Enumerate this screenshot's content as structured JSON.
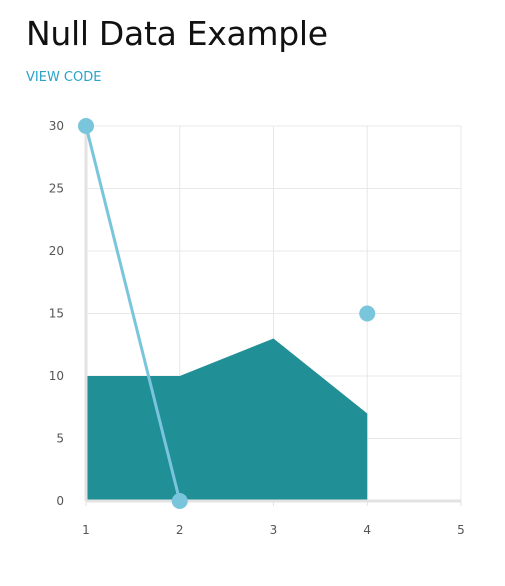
{
  "header": {
    "title": "Null Data Example",
    "view_code_label": "VIEW CODE"
  },
  "colors": {
    "area_fill": "#218f96",
    "line_stroke": "#79c5dc",
    "point_fill": "#79c5dc",
    "grid": "#e8e8e8",
    "axis": "#e3e3e3",
    "link": "#2aa3c9"
  },
  "chart_data": {
    "type": "line",
    "xlim": [
      1,
      5
    ],
    "ylim": [
      0,
      30
    ],
    "x_ticks": [
      "1",
      "2",
      "3",
      "4",
      "5"
    ],
    "y_ticks": [
      "0",
      "5",
      "10",
      "15",
      "20",
      "25",
      "30"
    ],
    "grid": true,
    "series": [
      {
        "type": "area",
        "points": [
          {
            "x": 1,
            "y": 10
          },
          {
            "x": 2,
            "y": 10
          },
          {
            "x": 3,
            "y": 13
          },
          {
            "x": 4,
            "y": 7
          }
        ]
      },
      {
        "type": "line",
        "points": [
          {
            "x": 1,
            "y": 30
          },
          {
            "x": 2,
            "y": 0
          },
          {
            "x": 3,
            "y": null
          },
          {
            "x": 4,
            "y": 15
          }
        ]
      }
    ]
  }
}
